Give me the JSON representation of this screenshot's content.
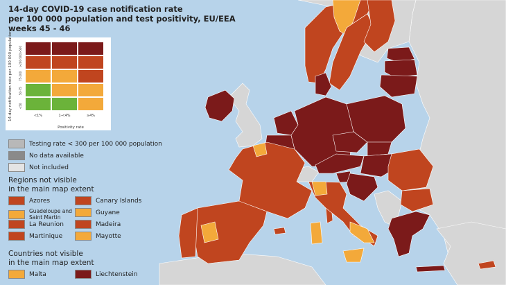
{
  "title": {
    "line1": "14-day COVID-19 case notification rate",
    "line2": "per 100 000 population and test positivity, EU/EEA",
    "line3": "weeks 45 - 46"
  },
  "colors": {
    "sea": "#b7d3ea",
    "dark_red": "#7b1a1a",
    "red_orange": "#c0451f",
    "orange": "#f3a93a",
    "green": "#6bb33a",
    "grey_testing": "#b8b8b8",
    "grey_nodata": "#8a8a8a",
    "not_included": "#e4e4e4"
  },
  "matrix": {
    "y_axis_label": "14-day notification rate per 100 000 population",
    "x_axis_label": "Positivity rate",
    "rows": [
      ">500",
      ">200-500",
      "75-200",
      "50-75",
      "<50"
    ],
    "cols": [
      "<1%",
      "1-<4%",
      "≥4%"
    ],
    "cells": [
      [
        "dark_red",
        "dark_red",
        "dark_red"
      ],
      [
        "red_orange",
        "red_orange",
        "red_orange"
      ],
      [
        "orange",
        "orange",
        "red_orange"
      ],
      [
        "green",
        "orange",
        "orange"
      ],
      [
        "green",
        "green",
        "orange"
      ]
    ]
  },
  "legend": {
    "testing": "Testing rate < 300 per 100 000 population",
    "no_data": "No data available",
    "not_included": "Not included"
  },
  "regions": {
    "heading_line1": "Regions not visible",
    "heading_line2": "in the main map extent",
    "items": [
      {
        "name": "Azores",
        "color": "red_orange"
      },
      {
        "name": "Canary Islands",
        "color": "red_orange"
      },
      {
        "name": "Guadeloupe and Saint Martin",
        "color": "orange"
      },
      {
        "name": "Guyane",
        "color": "orange"
      },
      {
        "name": "La Reunion",
        "color": "red_orange"
      },
      {
        "name": "Madeira",
        "color": "red_orange"
      },
      {
        "name": "Martinique",
        "color": "red_orange"
      },
      {
        "name": "Mayotte",
        "color": "orange"
      }
    ]
  },
  "countries": {
    "heading_line1": "Countries not visible",
    "heading_line2": "in the main map extent",
    "items": [
      {
        "name": "Malta",
        "color": "orange"
      },
      {
        "name": "Liechtenstein",
        "color": "dark_red"
      }
    ]
  }
}
